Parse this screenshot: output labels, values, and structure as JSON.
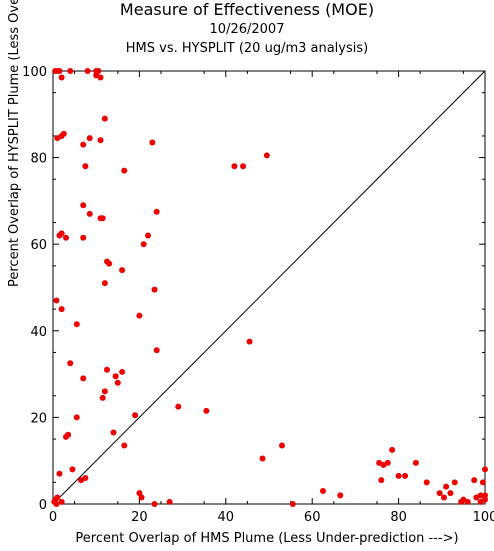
{
  "chart_data": {
    "type": "scatter",
    "title": "Measure of Effectiveness (MOE)",
    "date": "10/26/2007",
    "subtitle": "HMS vs. HYSPLIT  (20 ug/m3 analysis)",
    "xlabel": "Percent Overlap of HMS Plume (Less Under-prediction --->)",
    "ylabel": "Percent Overlap of HYSPLIT Plume (Less Over-prediction --->)",
    "xlim": [
      0,
      100
    ],
    "ylim": [
      0,
      100
    ],
    "xticks": [
      0,
      20,
      40,
      60,
      80,
      100
    ],
    "yticks": [
      0,
      20,
      40,
      60,
      80,
      100
    ],
    "grid": false,
    "reference_line": "y = x",
    "marker_color": "#ee0000",
    "x": [
      0.5,
      1,
      1.5,
      2,
      4,
      8,
      10,
      10.5,
      11,
      10,
      1.5,
      2,
      23,
      1,
      2,
      2.5,
      7,
      8.5,
      11,
      12,
      7.5,
      11,
      16.5,
      42,
      44,
      49.5,
      7,
      8.5,
      11.5,
      3,
      7,
      24,
      22,
      21,
      16,
      12.5,
      13,
      12,
      23.5,
      0.8,
      2,
      5.5,
      20,
      24,
      45.5,
      4,
      12.5,
      16,
      7,
      14.5,
      12,
      11.5,
      15,
      19,
      29,
      35.5,
      5.5,
      14,
      3.5,
      3,
      16.5,
      53,
      4.5,
      48.5,
      1.5,
      78.5,
      76.5,
      77.5,
      75.5,
      80,
      84,
      81.5,
      100,
      0.3,
      0.5,
      1,
      2,
      0.8,
      6.5,
      7.5,
      20,
      20.5,
      23.5,
      27,
      55.5,
      62.5,
      66.5,
      76,
      86.5,
      89.5,
      90.5,
      91,
      92,
      93,
      94.5,
      95,
      96,
      97.5,
      98,
      99,
      99.5,
      100,
      100,
      99
    ],
    "y": [
      100,
      100,
      100,
      98.5,
      100,
      100,
      99,
      100,
      98.5,
      100,
      62,
      62.5,
      83.5,
      84.5,
      85,
      85.5,
      83,
      84.5,
      84,
      89,
      78,
      66,
      77,
      78,
      78,
      80.5,
      69,
      67,
      66,
      61.5,
      61.5,
      67.5,
      62,
      60,
      54,
      56,
      55.5,
      51,
      49.5,
      47,
      45,
      41.5,
      43.5,
      35.5,
      37.5,
      32.5,
      31,
      30.5,
      29,
      29.5,
      26,
      24.5,
      28,
      20.5,
      22.5,
      21.5,
      20,
      16.5,
      16,
      15.5,
      13.5,
      13.5,
      8,
      10.5,
      7,
      12.5,
      9,
      9.5,
      9.5,
      6.5,
      9.5,
      6.5,
      8,
      0.5,
      1,
      1.5,
      0.5,
      0,
      5.5,
      6,
      2.5,
      1.5,
      0,
      0.5,
      0,
      3,
      2,
      5.5,
      5,
      2.5,
      1.5,
      4,
      2.5,
      5,
      0.5,
      1,
      0.5,
      5.5,
      1.5,
      2,
      5,
      2,
      1,
      0.5
    ]
  }
}
